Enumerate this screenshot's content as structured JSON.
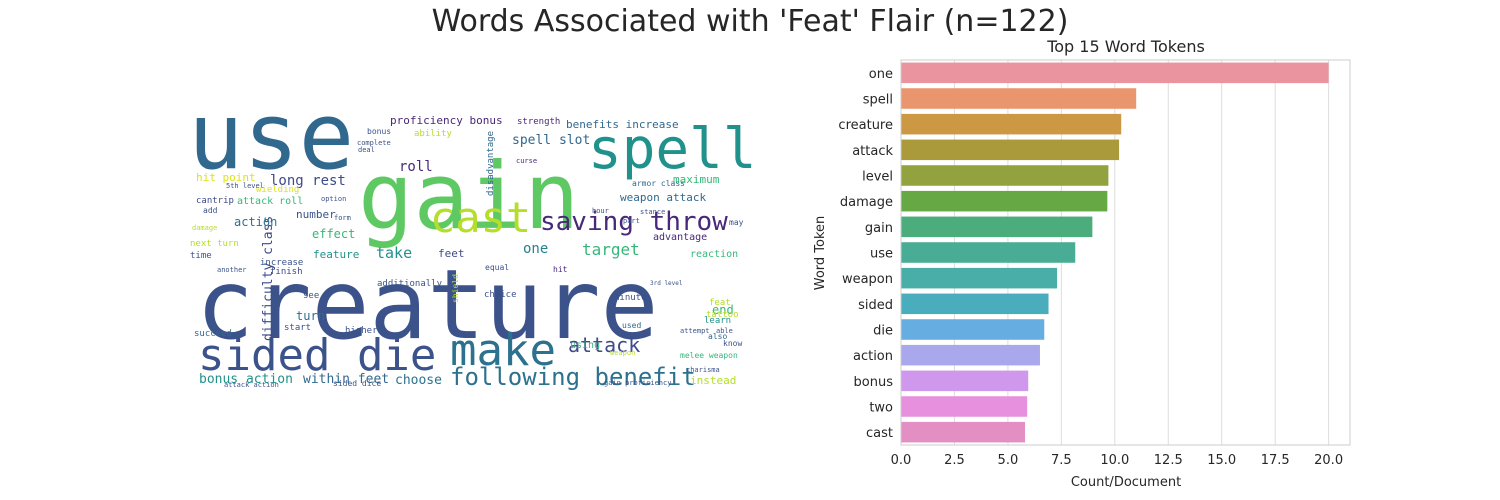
{
  "figure": {
    "title": "Words Associated with 'Feat' Flair (n=122)"
  },
  "chart_data": [
    {
      "type": "wordcloud",
      "title": "",
      "words": [
        {
          "text": "creature",
          "size": 96,
          "color": "#3b528b"
        },
        {
          "text": "use",
          "size": 92,
          "color": "#31688e"
        },
        {
          "text": "gain",
          "size": 92,
          "color": "#5ec962"
        },
        {
          "text": "spell",
          "size": 56,
          "color": "#21918c"
        },
        {
          "text": "sided die",
          "size": 44,
          "color": "#3b528b"
        },
        {
          "text": "make",
          "size": 44,
          "color": "#2c728e"
        },
        {
          "text": "cast",
          "size": 42,
          "color": "#b5de2b"
        },
        {
          "text": "saving throw",
          "size": 26,
          "color": "#482878"
        },
        {
          "text": "following benefit",
          "size": 24,
          "color": "#2c728e"
        },
        {
          "text": "attack",
          "size": 20,
          "color": "#3e4a89"
        },
        {
          "text": "target",
          "size": 16,
          "color": "#35b779"
        },
        {
          "text": "take",
          "size": 15,
          "color": "#21918c"
        },
        {
          "text": "long rest",
          "size": 14,
          "color": "#3e4a89"
        },
        {
          "text": "roll",
          "size": 14,
          "color": "#482878"
        },
        {
          "text": "spell slot",
          "size": 13,
          "color": "#31688e"
        },
        {
          "text": "one",
          "size": 14,
          "color": "#26828e"
        },
        {
          "text": "difficulty class",
          "size": 13,
          "color": "#3e4a89"
        },
        {
          "text": "bonus action",
          "size": 13,
          "color": "#21918c"
        },
        {
          "text": "within feet",
          "size": 13,
          "color": "#31688e"
        },
        {
          "text": "choose",
          "size": 13,
          "color": "#2c728e"
        },
        {
          "text": "proficiency bonus",
          "size": 11,
          "color": "#482878"
        },
        {
          "text": "benefits increase",
          "size": 11,
          "color": "#31688e"
        },
        {
          "text": "hit point",
          "size": 11,
          "color": "#dde318"
        },
        {
          "text": "maximum",
          "size": 11,
          "color": "#35b779"
        },
        {
          "text": "weapon attack",
          "size": 11,
          "color": "#31688e"
        },
        {
          "text": "action",
          "size": 12,
          "color": "#2c728e"
        },
        {
          "text": "effect",
          "size": 12,
          "color": "#35b779"
        },
        {
          "text": "number",
          "size": 11,
          "color": "#3b528b"
        },
        {
          "text": "feature",
          "size": 11,
          "color": "#21918c"
        },
        {
          "text": "feet",
          "size": 11,
          "color": "#3e4a89"
        },
        {
          "text": "advantage",
          "size": 10,
          "color": "#482878"
        },
        {
          "text": "reaction",
          "size": 10,
          "color": "#35b779"
        },
        {
          "text": "turn",
          "size": 12,
          "color": "#2c728e"
        },
        {
          "text": "end",
          "size": 12,
          "color": "#35b779"
        },
        {
          "text": "instead",
          "size": 11,
          "color": "#b5de2b"
        },
        {
          "text": "using",
          "size": 10,
          "color": "#35b779"
        },
        {
          "text": "attack roll",
          "size": 10,
          "color": "#35b779"
        },
        {
          "text": "disadvantage",
          "size": 9,
          "color": "#31688e"
        },
        {
          "text": "ability",
          "size": 9,
          "color": "#b5de2b"
        },
        {
          "text": "strength",
          "size": 9,
          "color": "#482878"
        },
        {
          "text": "armor class",
          "size": 8,
          "color": "#31688e"
        },
        {
          "text": "cantrip",
          "size": 9,
          "color": "#3e4a89"
        },
        {
          "text": "wielding",
          "size": 9,
          "color": "#dde318"
        },
        {
          "text": "next turn",
          "size": 9,
          "color": "#b5de2b"
        },
        {
          "text": "time",
          "size": 9,
          "color": "#3b528b"
        },
        {
          "text": "increase",
          "size": 9,
          "color": "#3b528b"
        },
        {
          "text": "finish",
          "size": 9,
          "color": "#3e4a89"
        },
        {
          "text": "see",
          "size": 9,
          "color": "#3b528b"
        },
        {
          "text": "start",
          "size": 9,
          "color": "#3b528b"
        },
        {
          "text": "higher",
          "size": 9,
          "color": "#3b528b"
        },
        {
          "text": "succeed",
          "size": 9,
          "color": "#31688e"
        },
        {
          "text": "additionally",
          "size": 9,
          "color": "#3b528b"
        },
        {
          "text": "equal",
          "size": 8,
          "color": "#3b528b"
        },
        {
          "text": "choice",
          "size": 9,
          "color": "#3b528b"
        },
        {
          "text": "minute",
          "size": 9,
          "color": "#3b528b"
        },
        {
          "text": "used",
          "size": 8,
          "color": "#31688e"
        },
        {
          "text": "feat",
          "size": 9,
          "color": "#b5de2b"
        },
        {
          "text": "tattoo",
          "size": 9,
          "color": "#b5de2b"
        },
        {
          "text": "learn",
          "size": 9,
          "color": "#21918c"
        },
        {
          "text": "also",
          "size": 8,
          "color": "#31688e"
        },
        {
          "text": "know",
          "size": 8,
          "color": "#3b528b"
        },
        {
          "text": "melee weapon",
          "size": 8,
          "color": "#35b779"
        },
        {
          "text": "sided dice",
          "size": 8,
          "color": "#3b528b"
        },
        {
          "text": "shield",
          "size": 8,
          "color": "#b5de2b"
        },
        {
          "text": "damage",
          "size": 7,
          "color": "#b5de2b"
        },
        {
          "text": "add",
          "size": 8,
          "color": "#3b528b"
        },
        {
          "text": "may",
          "size": 8,
          "color": "#3b528b"
        },
        {
          "text": "hit",
          "size": 8,
          "color": "#482878"
        },
        {
          "text": "curse",
          "size": 7,
          "color": "#482878"
        },
        {
          "text": "bonus",
          "size": 8,
          "color": "#3b528b"
        },
        {
          "text": "complete",
          "size": 7,
          "color": "#3b528b"
        },
        {
          "text": "deal",
          "size": 7,
          "color": "#3b528b"
        },
        {
          "text": "5th level",
          "size": 7,
          "color": "#3b528b"
        },
        {
          "text": "3rd level",
          "size": 6,
          "color": "#3b528b"
        },
        {
          "text": "attack action",
          "size": 7,
          "color": "#3b528b"
        },
        {
          "text": "gain proficiency",
          "size": 7,
          "color": "#3b528b"
        },
        {
          "text": "weapon",
          "size": 7,
          "color": "#b5de2b"
        },
        {
          "text": "charisma",
          "size": 7,
          "color": "#3b528b"
        },
        {
          "text": "another",
          "size": 7,
          "color": "#3b528b"
        },
        {
          "text": "part",
          "size": 7,
          "color": "#3b528b"
        },
        {
          "text": "able",
          "size": 7,
          "color": "#3b528b"
        },
        {
          "text": "attempt",
          "size": 7,
          "color": "#3b528b"
        },
        {
          "text": "hour",
          "size": 7,
          "color": "#3b528b"
        },
        {
          "text": "stance",
          "size": 7,
          "color": "#3b528b"
        },
        {
          "text": "form",
          "size": 7,
          "color": "#3b528b"
        },
        {
          "text": "option",
          "size": 7,
          "color": "#3b528b"
        }
      ]
    },
    {
      "type": "bar",
      "orientation": "horizontal",
      "title": "Top 15 Word Tokens",
      "xlabel": "Count/Document",
      "ylabel": "Word Token",
      "xlim": [
        0,
        21
      ],
      "xticks": [
        0,
        2.5,
        5,
        7.5,
        10,
        12.5,
        15,
        17.5,
        20
      ],
      "xtick_labels": [
        "0.0",
        "2.5",
        "5.0",
        "7.5",
        "10.0",
        "12.5",
        "15.0",
        "17.5",
        "20.0"
      ],
      "grid": "vertical",
      "categories": [
        "one",
        "spell",
        "creature",
        "attack",
        "level",
        "damage",
        "gain",
        "use",
        "weapon",
        "sided",
        "die",
        "action",
        "bonus",
        "two",
        "cast"
      ],
      "values": [
        20.0,
        11.0,
        10.3,
        10.2,
        9.7,
        9.65,
        8.95,
        8.15,
        7.3,
        6.9,
        6.7,
        6.5,
        5.95,
        5.9,
        5.8
      ],
      "colors": [
        "#ea949f",
        "#e9956d",
        "#cc9844",
        "#aa9a3c",
        "#92a23e",
        "#66a944",
        "#4aad7b",
        "#48ad94",
        "#48aea7",
        "#4aadbe",
        "#66aee2",
        "#a9a8ec",
        "#d098ec",
        "#e791de",
        "#e48fc4"
      ]
    }
  ]
}
